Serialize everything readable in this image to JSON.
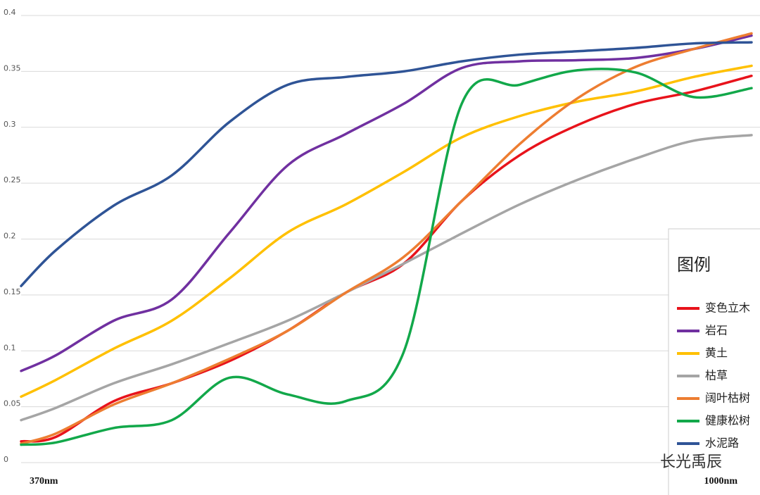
{
  "chart_data": {
    "type": "line",
    "x": [
      370,
      400,
      450,
      500,
      550,
      600,
      650,
      700,
      750,
      800,
      850,
      900,
      950,
      1000
    ],
    "xlim": [
      370,
      1000
    ],
    "xticks": [
      {
        "value": 370,
        "label": "370nm"
      },
      {
        "value": 1000,
        "label": "1000nm"
      }
    ],
    "ylim": [
      0,
      0.4
    ],
    "yticks": [
      0,
      0.05,
      0.1,
      0.15,
      0.2,
      0.25,
      0.3,
      0.35,
      0.4
    ],
    "grid": true,
    "legend_title": "图例",
    "legend_position": "right",
    "watermark": "长光禹辰",
    "series": [
      {
        "name": "变色立木",
        "color": "#e8131b",
        "values": [
          0.019,
          0.023,
          0.055,
          0.071,
          0.091,
          0.118,
          0.152,
          0.178,
          0.234,
          0.275,
          0.302,
          0.321,
          0.332,
          0.346
        ]
      },
      {
        "name": "岩石",
        "color": "#7030a0",
        "values": [
          0.082,
          0.096,
          0.127,
          0.146,
          0.206,
          0.266,
          0.294,
          0.321,
          0.353,
          0.359,
          0.36,
          0.362,
          0.37,
          0.382
        ]
      },
      {
        "name": "黄土",
        "color": "#ffc000",
        "values": [
          0.059,
          0.074,
          0.102,
          0.127,
          0.165,
          0.206,
          0.231,
          0.26,
          0.291,
          0.31,
          0.323,
          0.332,
          0.345,
          0.355
        ]
      },
      {
        "name": "枯草",
        "color": "#a5a5a5",
        "values": [
          0.038,
          0.049,
          0.071,
          0.088,
          0.107,
          0.127,
          0.152,
          0.178,
          0.205,
          0.231,
          0.253,
          0.272,
          0.288,
          0.293
        ]
      },
      {
        "name": "阔叶枯树",
        "color": "#ed7d31",
        "values": [
          0.017,
          0.026,
          0.052,
          0.071,
          0.093,
          0.118,
          0.152,
          0.184,
          0.234,
          0.285,
          0.326,
          0.354,
          0.37,
          0.384
        ]
      },
      {
        "name": "健康松树",
        "color": "#12a84a",
        "values": [
          0.016,
          0.018,
          0.031,
          0.038,
          0.076,
          0.061,
          0.055,
          0.099,
          0.321,
          0.338,
          0.351,
          0.349,
          0.327,
          0.335
        ]
      },
      {
        "name": "水泥路",
        "color": "#2f5496",
        "values": [
          0.158,
          0.19,
          0.23,
          0.257,
          0.305,
          0.338,
          0.345,
          0.35,
          0.359,
          0.365,
          0.368,
          0.371,
          0.375,
          0.376
        ]
      }
    ]
  }
}
